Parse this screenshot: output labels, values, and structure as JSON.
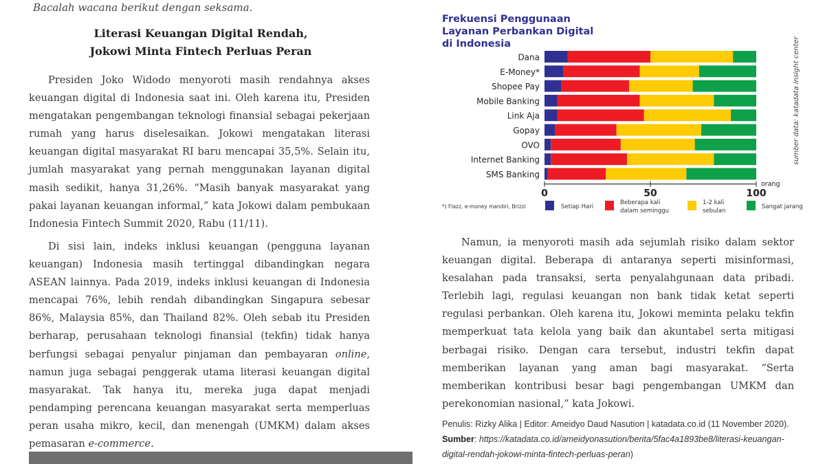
{
  "intro": "Bacalah wacana berikut dengan seksama.",
  "article_title": [
    "Literasi Keuangan Digital Rendah,",
    "Jokowi Minta Fintech Perluas Peran"
  ],
  "paragraphs": {
    "p1": "Presiden Joko Widodo menyoroti masih rendahnya akses keuangan digital di Indonesia saat ini. Oleh karena itu, Presiden mengatakan pengembangan teknologi finansial sebagai pekerjaan rumah yang harus diselesaikan. Jokowi mengatakan literasi keuangan digital masyarakat RI baru mencapai 35,5%. Selain itu, jumlah masyarakat yang pernah menggunakan layanan digital masih sedikit, hanya 31,26%. “Masih banyak masyarakat yang pakai layanan keuangan informal,” kata Jokowi dalam pembukaan Indonesia Fintech Summit 2020, Rabu (11/11).",
    "p2a": "Di sisi lain, indeks inklusi keuangan (pengguna layanan keuangan) Indonesia masih tertinggal dibandingkan negara ASEAN lainnya. Pada 2019, indeks inklusi keuangan di Indonesia mencapai 76%, lebih rendah dibandingkan Singapura sebesar 86%, Malaysia 85%, dan Thailand 82%. Oleh sebab itu Presiden berharap, perusahaan teknologi finansial (tekfin) tidak hanya berfungsi sebagai penyalur pinjaman dan pembayaran ",
    "p2b": "online",
    "p2c": ", namun juga sebagai penggerak utama literasi keuangan digital masyarakat. Tak hanya itu, mereka juga dapat menjadi pendamping perencana keuangan masyarakat serta memperluas peran usaha mikro, kecil, dan menengah (UMKM) dalam akses pemasaran ",
    "p2d": "e-commerce",
    "p2e": ".",
    "p3": "Namun, ia menyoroti masih ada sejumlah risiko dalam sektor keuangan digital. Beberapa di antaranya seperti misinformasi, kesalahan pada transaksi, serta penyalahgunaan data pribadi. Terlebih lagi, regulasi keuangan non bank tidak ketat seperti regulasi perbankan. Oleh karena itu, Jokowi meminta pelaku tekfin memperkuat tata kelola yang baik dan akuntabel serta mitigasi berbagai risiko. Dengan cara tersebut, industri tekfin dapat memberikan layanan yang aman bagi masyarakat. “Serta memberikan kontribusi besar bagi pengembangan UMKM dan perekonomian nasional,” kata Jokowi."
  },
  "footer": {
    "credit": "Penulis: Rizky Alika | Editor: Ameidyo Daud Nasution | katadata.co.id (11 November 2020). ",
    "source_label": "Sumber",
    "colon": ": ",
    "url": "https://katadata.co.id/ameidyonasution/berita/5fac4a1893be8/literasi-keuangan-digital-rendah-jokowi-minta-fintech-perluas-peran",
    "close": ")"
  },
  "chart_data": {
    "type": "bar",
    "orientation": "horizontal-stacked",
    "title": [
      "Frekuensi Penggunaan",
      "Layanan Perbankan Digital",
      "di Indonesia"
    ],
    "categories": [
      "Dana",
      "E-Money*",
      "Shopee Pay",
      "Mobile Banking",
      "Link Aja",
      "Gopay",
      "OVO",
      "Internet Banking",
      "SMS Banking"
    ],
    "series": [
      {
        "name": "Setiap Hari",
        "color": "#2e3192",
        "values": [
          11,
          9,
          8,
          6,
          6,
          5,
          3,
          3,
          1.5
        ]
      },
      {
        "name": "Beberapa kali dalam seminggu",
        "color": "#ed1c24",
        "values": [
          39,
          36,
          32,
          39,
          41,
          29,
          33,
          36,
          27.5
        ]
      },
      {
        "name": "1-2 kali sebulan",
        "color": "#ffcb05",
        "values": [
          39,
          28,
          30,
          35,
          41,
          40,
          35,
          41,
          38
        ]
      },
      {
        "name": "Sangat jarang",
        "color": "#0fa14a",
        "values": [
          11,
          27,
          30,
          20,
          12,
          26,
          29,
          20,
          33
        ]
      }
    ],
    "legend_lines": [
      [
        "Setiap Hari"
      ],
      [
        "Beberapa kali",
        "dalam seminggu"
      ],
      [
        "1-2 kali",
        "sebulan"
      ],
      [
        "Sangat jarang"
      ]
    ],
    "xticks": [
      0,
      50,
      100
    ],
    "xlim": [
      0,
      100
    ],
    "xunit": "orang",
    "footnote": "*) Flazz, e-money mandiri, Brizzi",
    "source": "sumber data: katadata insight center",
    "legend_position": "bottom"
  }
}
